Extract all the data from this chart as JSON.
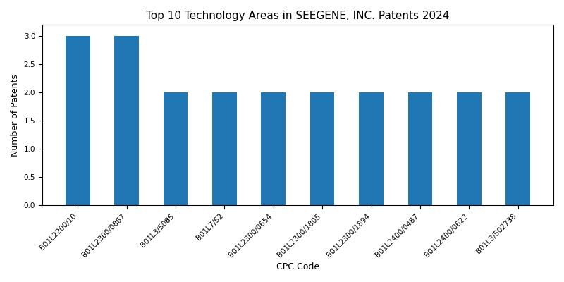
{
  "title": "Top 10 Technology Areas in SEEGENE, INC. Patents 2024",
  "xlabel": "CPC Code",
  "ylabel": "Number of Patents",
  "categories": [
    "B01L2200/10",
    "B01L2300/0867",
    "B01L3/5085",
    "B01L7/52",
    "B01L2300/0654",
    "B01L2300/1805",
    "B01L2300/1894",
    "B01L2400/0487",
    "B01L2400/0622",
    "B01L3/502738"
  ],
  "values": [
    3,
    3,
    2,
    2,
    2,
    2,
    2,
    2,
    2,
    2
  ],
  "bar_color": "#2077B4",
  "ylim": [
    0,
    3.2
  ],
  "yticks": [
    0.0,
    0.5,
    1.0,
    1.5,
    2.0,
    2.5,
    3.0
  ],
  "figsize": [
    8.0,
    4.0
  ],
  "dpi": 100,
  "title_fontsize": 11,
  "label_fontsize": 9,
  "tick_fontsize": 7.5,
  "rotation": 45,
  "bar_width": 0.5,
  "background_color": "#ffffff"
}
